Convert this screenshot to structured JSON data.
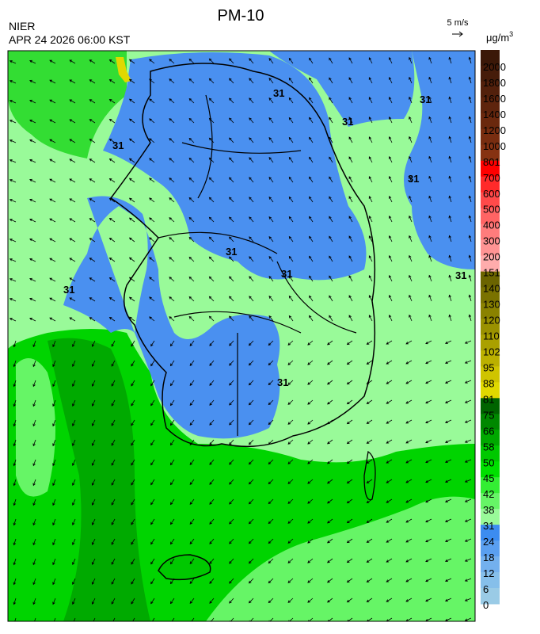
{
  "header": {
    "title": "PM-10",
    "agency": "NIER",
    "datetime": "APR 24 2026 06:00 KST",
    "wind_scale": "5 m/s",
    "unit": {
      "base": "μg/m",
      "sup": "3"
    }
  },
  "map": {
    "contour_labels": [
      "31",
      "31",
      "31",
      "31",
      "31",
      "31",
      "31",
      "31",
      "31",
      "31"
    ]
  },
  "legend": {
    "ticks": [
      2000,
      1800,
      1600,
      1400,
      1200,
      1000,
      801,
      700,
      600,
      500,
      400,
      300,
      200,
      151,
      140,
      130,
      120,
      110,
      102,
      95,
      88,
      81,
      75,
      66,
      58,
      50,
      45,
      42,
      38,
      31,
      24,
      18,
      12,
      6,
      0
    ],
    "colors": [
      "#3b1808",
      "#461c0a",
      "#52200c",
      "#5e240d",
      "#6a280e",
      "#782d10",
      "#863212",
      "#ff0000",
      "#ff2a2a",
      "#ff4a4a",
      "#ff6464",
      "#ff7c7c",
      "#ff9494",
      "#ffacac",
      "#6b6400",
      "#7a7200",
      "#8a8200",
      "#9a9100",
      "#aaa000",
      "#bbb000",
      "#cfc400",
      "#e0d800",
      "#006400",
      "#008800",
      "#00a800",
      "#00c800",
      "#00e000",
      "#33ee33",
      "#66f566",
      "#99fa99",
      "#3c8cf0",
      "#5a9ff0",
      "#73b0ee",
      "#86bfea",
      "#9acbe6"
    ]
  }
}
